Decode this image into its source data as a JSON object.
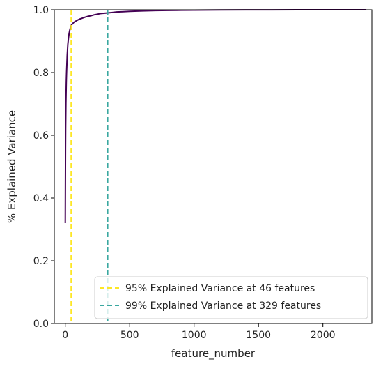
{
  "chart_data": {
    "type": "line",
    "xlabel": "feature_number",
    "ylabel": "% Explained Variance",
    "xlim": [
      -85,
      2380
    ],
    "ylim": [
      0.0,
      1.0
    ],
    "x_ticks": [
      0,
      500,
      1000,
      1500,
      2000
    ],
    "y_ticks": [
      0.0,
      0.2,
      0.4,
      0.6,
      0.8,
      1.0
    ],
    "x_tick_labels": [
      "0",
      "500",
      "1000",
      "1500",
      "2000"
    ],
    "y_tick_labels": [
      "0.0",
      "0.2",
      "0.4",
      "0.6",
      "0.8",
      "1.0"
    ],
    "grid": false,
    "legend_position": "lower-right",
    "series": [
      {
        "color": "#440154",
        "x": [
          0,
          1,
          2,
          3,
          5,
          8,
          10,
          15,
          20,
          25,
          30,
          35,
          40,
          46,
          55,
          70,
          90,
          110,
          130,
          150,
          175,
          200,
          225,
          250,
          275,
          300,
          329,
          360,
          400,
          450,
          500,
          600,
          700,
          800,
          900,
          1000,
          1200,
          1400,
          1600,
          1800,
          2000,
          2200,
          2337
        ],
        "y": [
          0.32,
          0.45,
          0.55,
          0.62,
          0.7,
          0.77,
          0.8,
          0.855,
          0.89,
          0.91,
          0.925,
          0.935,
          0.943,
          0.95,
          0.955,
          0.961,
          0.966,
          0.97,
          0.973,
          0.976,
          0.979,
          0.981,
          0.984,
          0.986,
          0.988,
          0.989,
          0.99,
          0.991,
          0.993,
          0.994,
          0.995,
          0.9965,
          0.9975,
          0.998,
          0.9985,
          0.999,
          0.9994,
          0.9997,
          0.9998,
          0.9999,
          1.0,
          1.0,
          1.0
        ]
      }
    ],
    "vlines": [
      {
        "x": 46,
        "color": "#fde725",
        "style": "dashed",
        "label": "95% Explained Variance at 46 features"
      },
      {
        "x": 329,
        "color": "#3aa8a0",
        "style": "dashed",
        "label": "99% Explained Variance at 329 features"
      }
    ]
  }
}
